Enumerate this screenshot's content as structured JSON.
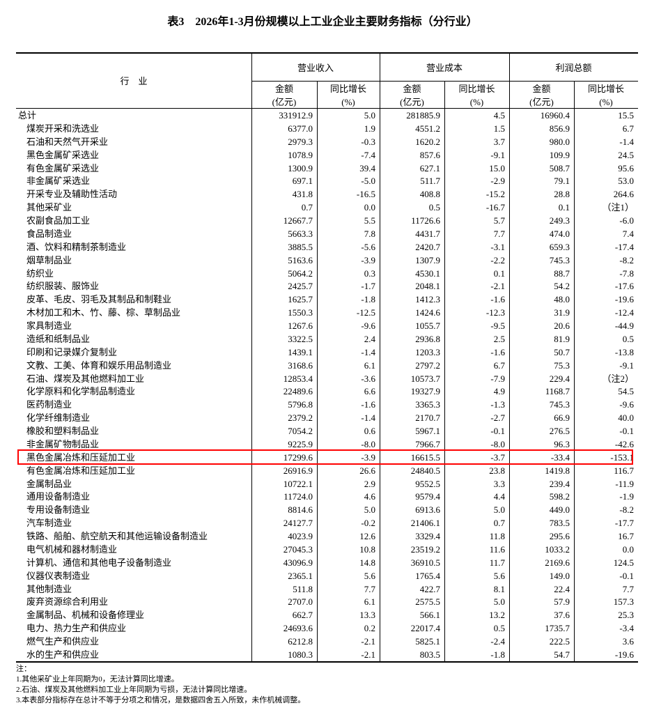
{
  "title": "表3　2026年1-3月份规模以上工业企业主要财务指标（分行业）",
  "header": {
    "industry": "行　业",
    "groups": [
      "营业收入",
      "营业成本",
      "利润总额"
    ],
    "amount": "金额",
    "amount_unit": "(亿元)",
    "growth": "同比增长",
    "growth_unit": "(%)"
  },
  "highlight_color": "#ff0000",
  "highlighted_row": "黑色金属冶炼和压延加工业",
  "rows": [
    {
      "name": "总计",
      "sub": false,
      "v": [
        "331912.9",
        "5.0",
        "281885.9",
        "4.5",
        "16960.4",
        "15.5"
      ]
    },
    {
      "name": "煤炭开采和洗选业",
      "sub": true,
      "v": [
        "6377.0",
        "1.9",
        "4551.2",
        "1.5",
        "856.9",
        "6.7"
      ]
    },
    {
      "name": "石油和天然气开采业",
      "sub": true,
      "v": [
        "2979.3",
        "-0.3",
        "1620.2",
        "3.7",
        "980.0",
        "-1.4"
      ]
    },
    {
      "name": "黑色金属矿采选业",
      "sub": true,
      "v": [
        "1078.9",
        "-7.4",
        "857.6",
        "-9.1",
        "109.9",
        "24.5"
      ]
    },
    {
      "name": "有色金属矿采选业",
      "sub": true,
      "v": [
        "1300.9",
        "39.4",
        "627.1",
        "15.0",
        "508.7",
        "95.6"
      ]
    },
    {
      "name": "非金属矿采选业",
      "sub": true,
      "v": [
        "697.1",
        "-5.0",
        "511.7",
        "-2.9",
        "79.1",
        "53.0"
      ]
    },
    {
      "name": "开采专业及辅助性活动",
      "sub": true,
      "v": [
        "431.8",
        "-16.5",
        "408.8",
        "-15.2",
        "28.8",
        "264.6"
      ]
    },
    {
      "name": "其他采矿业",
      "sub": true,
      "v": [
        "0.7",
        "0.0",
        "0.5",
        "-16.7",
        "0.1",
        "（注1）"
      ]
    },
    {
      "name": "农副食品加工业",
      "sub": true,
      "v": [
        "12667.7",
        "5.5",
        "11726.6",
        "5.7",
        "249.3",
        "-6.0"
      ]
    },
    {
      "name": "食品制造业",
      "sub": true,
      "v": [
        "5663.3",
        "7.8",
        "4431.7",
        "7.7",
        "474.0",
        "7.4"
      ]
    },
    {
      "name": "酒、饮料和精制茶制造业",
      "sub": true,
      "v": [
        "3885.5",
        "-5.6",
        "2420.7",
        "-3.1",
        "659.3",
        "-17.4"
      ]
    },
    {
      "name": "烟草制品业",
      "sub": true,
      "v": [
        "5163.6",
        "-3.9",
        "1307.9",
        "-2.2",
        "745.3",
        "-8.2"
      ]
    },
    {
      "name": "纺织业",
      "sub": true,
      "v": [
        "5064.2",
        "0.3",
        "4530.1",
        "0.1",
        "88.7",
        "-7.8"
      ]
    },
    {
      "name": "纺织服装、服饰业",
      "sub": true,
      "v": [
        "2425.7",
        "-1.7",
        "2048.1",
        "-2.1",
        "54.2",
        "-17.6"
      ]
    },
    {
      "name": "皮革、毛皮、羽毛及其制品和制鞋业",
      "sub": true,
      "v": [
        "1625.7",
        "-1.8",
        "1412.3",
        "-1.6",
        "48.0",
        "-19.6"
      ]
    },
    {
      "name": "木材加工和木、竹、藤、棕、草制品业",
      "sub": true,
      "v": [
        "1550.3",
        "-12.5",
        "1424.6",
        "-12.3",
        "31.9",
        "-12.4"
      ]
    },
    {
      "name": "家具制造业",
      "sub": true,
      "v": [
        "1267.6",
        "-9.6",
        "1055.7",
        "-9.5",
        "20.6",
        "-44.9"
      ]
    },
    {
      "name": "造纸和纸制品业",
      "sub": true,
      "v": [
        "3322.5",
        "2.4",
        "2936.8",
        "2.5",
        "81.9",
        "0.5"
      ]
    },
    {
      "name": "印刷和记录媒介复制业",
      "sub": true,
      "v": [
        "1439.1",
        "-1.4",
        "1203.3",
        "-1.6",
        "50.7",
        "-13.8"
      ]
    },
    {
      "name": "文教、工美、体育和娱乐用品制造业",
      "sub": true,
      "v": [
        "3168.6",
        "6.1",
        "2797.2",
        "6.7",
        "75.3",
        "-9.1"
      ]
    },
    {
      "name": "石油、煤炭及其他燃料加工业",
      "sub": true,
      "v": [
        "12853.4",
        "-3.6",
        "10573.7",
        "-7.9",
        "229.4",
        "（注2）"
      ]
    },
    {
      "name": "化学原料和化学制品制造业",
      "sub": true,
      "v": [
        "22489.6",
        "6.6",
        "19327.9",
        "4.9",
        "1168.7",
        "54.5"
      ]
    },
    {
      "name": "医药制造业",
      "sub": true,
      "v": [
        "5796.8",
        "-1.6",
        "3365.3",
        "-1.3",
        "745.3",
        "-9.6"
      ]
    },
    {
      "name": "化学纤维制造业",
      "sub": true,
      "v": [
        "2379.2",
        "-1.4",
        "2170.7",
        "-2.7",
        "66.9",
        "40.0"
      ]
    },
    {
      "name": "橡胶和塑料制品业",
      "sub": true,
      "v": [
        "7054.2",
        "0.6",
        "5967.1",
        "-0.1",
        "276.5",
        "-0.1"
      ]
    },
    {
      "name": "非金属矿物制品业",
      "sub": true,
      "v": [
        "9225.9",
        "-8.0",
        "7966.7",
        "-8.0",
        "96.3",
        "-42.6"
      ]
    },
    {
      "name": "黑色金属冶炼和压延加工业",
      "sub": true,
      "v": [
        "17299.6",
        "-3.9",
        "16615.5",
        "-3.7",
        "-33.4",
        "-153.1"
      ]
    },
    {
      "name": "有色金属冶炼和压延加工业",
      "sub": true,
      "v": [
        "26916.9",
        "26.6",
        "24840.5",
        "23.8",
        "1419.8",
        "116.7"
      ]
    },
    {
      "name": "金属制品业",
      "sub": true,
      "v": [
        "10722.1",
        "2.9",
        "9552.5",
        "3.3",
        "239.4",
        "-11.9"
      ]
    },
    {
      "name": "通用设备制造业",
      "sub": true,
      "v": [
        "11724.0",
        "4.6",
        "9579.4",
        "4.4",
        "598.2",
        "-1.9"
      ]
    },
    {
      "name": "专用设备制造业",
      "sub": true,
      "v": [
        "8814.6",
        "5.0",
        "6913.6",
        "5.0",
        "449.0",
        "-8.2"
      ]
    },
    {
      "name": "汽车制造业",
      "sub": true,
      "v": [
        "24127.7",
        "-0.2",
        "21406.1",
        "0.7",
        "783.5",
        "-17.7"
      ]
    },
    {
      "name": "铁路、船舶、航空航天和其他运输设备制造业",
      "sub": true,
      "v": [
        "4023.9",
        "12.6",
        "3329.4",
        "11.8",
        "295.6",
        "16.7"
      ]
    },
    {
      "name": "电气机械和器材制造业",
      "sub": true,
      "v": [
        "27045.3",
        "10.8",
        "23519.2",
        "11.6",
        "1033.2",
        "0.0"
      ]
    },
    {
      "name": "计算机、通信和其他电子设备制造业",
      "sub": true,
      "v": [
        "43096.9",
        "14.8",
        "36910.5",
        "11.7",
        "2169.6",
        "124.5"
      ]
    },
    {
      "name": "仪器仪表制造业",
      "sub": true,
      "v": [
        "2365.1",
        "5.6",
        "1765.4",
        "5.6",
        "149.0",
        "-0.1"
      ]
    },
    {
      "name": "其他制造业",
      "sub": true,
      "v": [
        "511.8",
        "7.7",
        "422.7",
        "8.1",
        "22.4",
        "7.7"
      ]
    },
    {
      "name": "废弃资源综合利用业",
      "sub": true,
      "v": [
        "2707.0",
        "6.1",
        "2575.5",
        "5.0",
        "57.9",
        "157.3"
      ]
    },
    {
      "name": "金属制品、机械和设备修理业",
      "sub": true,
      "v": [
        "662.7",
        "13.3",
        "566.1",
        "13.2",
        "37.6",
        "25.3"
      ]
    },
    {
      "name": "电力、热力生产和供应业",
      "sub": true,
      "v": [
        "24693.6",
        "0.2",
        "22017.4",
        "0.5",
        "1735.7",
        "-3.4"
      ]
    },
    {
      "name": "燃气生产和供应业",
      "sub": true,
      "v": [
        "6212.8",
        "-2.1",
        "5825.1",
        "-2.4",
        "222.5",
        "3.6"
      ]
    },
    {
      "name": "水的生产和供应业",
      "sub": true,
      "v": [
        "1080.3",
        "-2.1",
        "803.5",
        "-1.8",
        "54.7",
        "-19.6"
      ]
    }
  ],
  "notes": {
    "heading": "注：",
    "items": [
      "1.其他采矿业上年同期为0，无法计算同比增速。",
      "2.石油、煤炭及其他燃料加工业上年同期为亏损，无法计算同比增速。",
      "3.本表部分指标存在总计不等于分项之和情况，是数据四舍五入所致，未作机械调整。"
    ]
  }
}
